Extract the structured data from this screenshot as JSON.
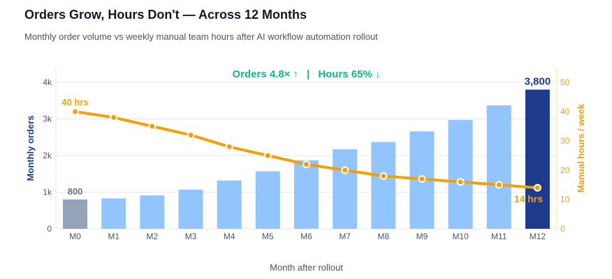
{
  "title": "Orders Grow, Hours Don't — Across 12 Months",
  "subtitle": "Monthly order volume vs weekly manual team hours after AI workflow automation rollout",
  "chart_data": {
    "type": "bar",
    "categories": [
      "M0",
      "M1",
      "M2",
      "M3",
      "M4",
      "M5",
      "M6",
      "M7",
      "M8",
      "M9",
      "M10",
      "M11",
      "M12"
    ],
    "series": [
      {
        "axis": "left",
        "kind": "bar",
        "values": [
          800,
          830,
          910,
          1070,
          1320,
          1570,
          1870,
          2170,
          2370,
          2660,
          2970,
          3370,
          3800
        ],
        "colors": {
          "first": "#94a3b8",
          "middle": "#93c5fd",
          "last": "#1e3a8a"
        }
      },
      {
        "axis": "right",
        "kind": "line",
        "color": "#f59e0b",
        "values": [
          40,
          38,
          35,
          32,
          28,
          25,
          22,
          20,
          18,
          17,
          16,
          15,
          14
        ]
      }
    ],
    "xlabel": "Month after rollout",
    "ylabel": "Monthly orders",
    "y2label": "Manual hours / week",
    "ylim": [
      0,
      4400
    ],
    "y2lim": [
      0,
      55
    ],
    "yticks": [
      {
        "v": 0,
        "label": "0"
      },
      {
        "v": 1000,
        "label": "1k"
      },
      {
        "v": 2000,
        "label": "2k"
      },
      {
        "v": 3000,
        "label": "3k"
      },
      {
        "v": 4000,
        "label": "4k"
      }
    ],
    "y2ticks": [
      {
        "v": 0,
        "label": "0"
      },
      {
        "v": 10,
        "label": "10"
      },
      {
        "v": 20,
        "label": "20"
      },
      {
        "v": 30,
        "label": "30"
      },
      {
        "v": 40,
        "label": "40"
      },
      {
        "v": 50,
        "label": "50"
      }
    ],
    "grid": true,
    "annotations": {
      "headline_orders": "Orders 4.8× ↑",
      "headline_sep": "|",
      "headline_hours": "Hours 65% ↓",
      "first_bar_label": "800",
      "last_bar_label": "3,800",
      "first_line_label": "40 hrs",
      "last_line_label": "14 hrs"
    },
    "colors": {
      "left_axis": "#1e3a8a",
      "right_axis": "#f59e0b",
      "headline": "#10b981",
      "tick": "#4b5563",
      "grid": "#e5e7eb"
    }
  }
}
